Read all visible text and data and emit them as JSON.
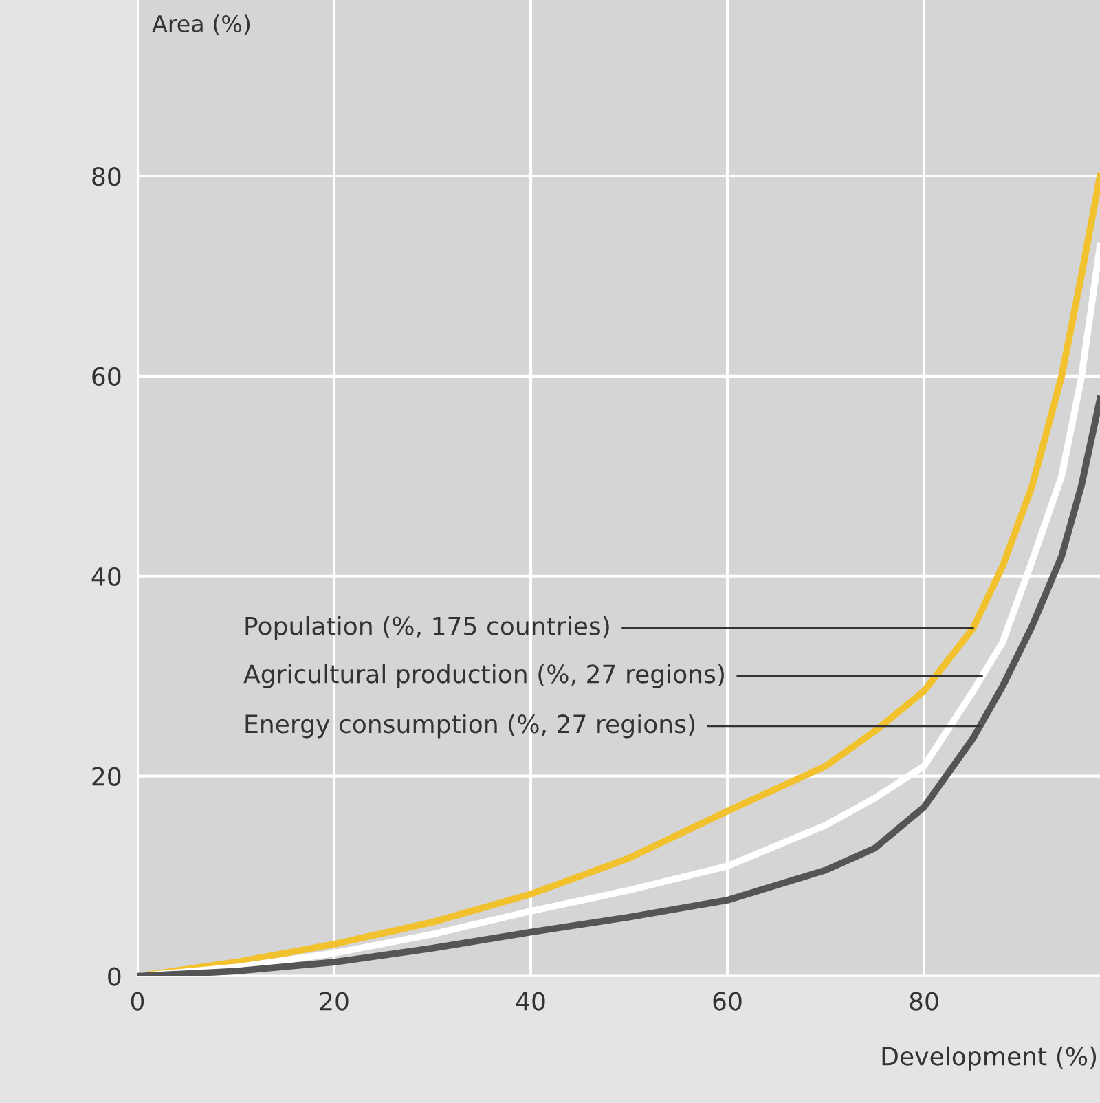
{
  "chart_data": {
    "type": "line",
    "xlabel": "Development (%)",
    "ylabel": "Area (%)",
    "x": [
      0,
      10,
      20,
      30,
      40,
      50,
      60,
      70,
      75,
      80,
      85,
      88,
      91,
      94,
      96,
      97.9
    ],
    "series": [
      {
        "color": "#f2c12e",
        "values": [
          0,
          1.4,
          3.2,
          5.4,
          8.2,
          11.8,
          16.5,
          21,
          24.5,
          28.5,
          34.8,
          41,
          49,
          60,
          70,
          80
        ]
      },
      {
        "color": "#ffffff",
        "values": [
          0,
          0.9,
          2.3,
          4.2,
          6.5,
          8.6,
          11,
          15.1,
          17.8,
          21,
          28.5,
          33.4,
          41.5,
          50,
          59.8,
          73
        ]
      },
      {
        "color": "#555555",
        "values": [
          0,
          0.5,
          1.4,
          2.8,
          4.4,
          5.9,
          7.6,
          10.6,
          12.8,
          16.9,
          23.8,
          29,
          35,
          42,
          49,
          57.7
        ]
      }
    ],
    "annotations": [
      {
        "text": "Population (%, 175 countries)",
        "x": 85,
        "y": 34.8
      },
      {
        "text": "Agricultural production (%, 27 regions)",
        "x": 85.9,
        "y": 30
      },
      {
        "text": "Energy consumption (%, 27 regions)",
        "x": 85.7,
        "y": 25
      }
    ],
    "xlim": [
      0,
      97.9
    ],
    "ylim": [
      0,
      97.6
    ],
    "xticks": [
      0,
      20,
      40,
      60,
      80
    ],
    "yticks": [
      0,
      20,
      40,
      60,
      80
    ],
    "grid": true,
    "legend": false,
    "marker": "none",
    "line_style": "solid"
  }
}
